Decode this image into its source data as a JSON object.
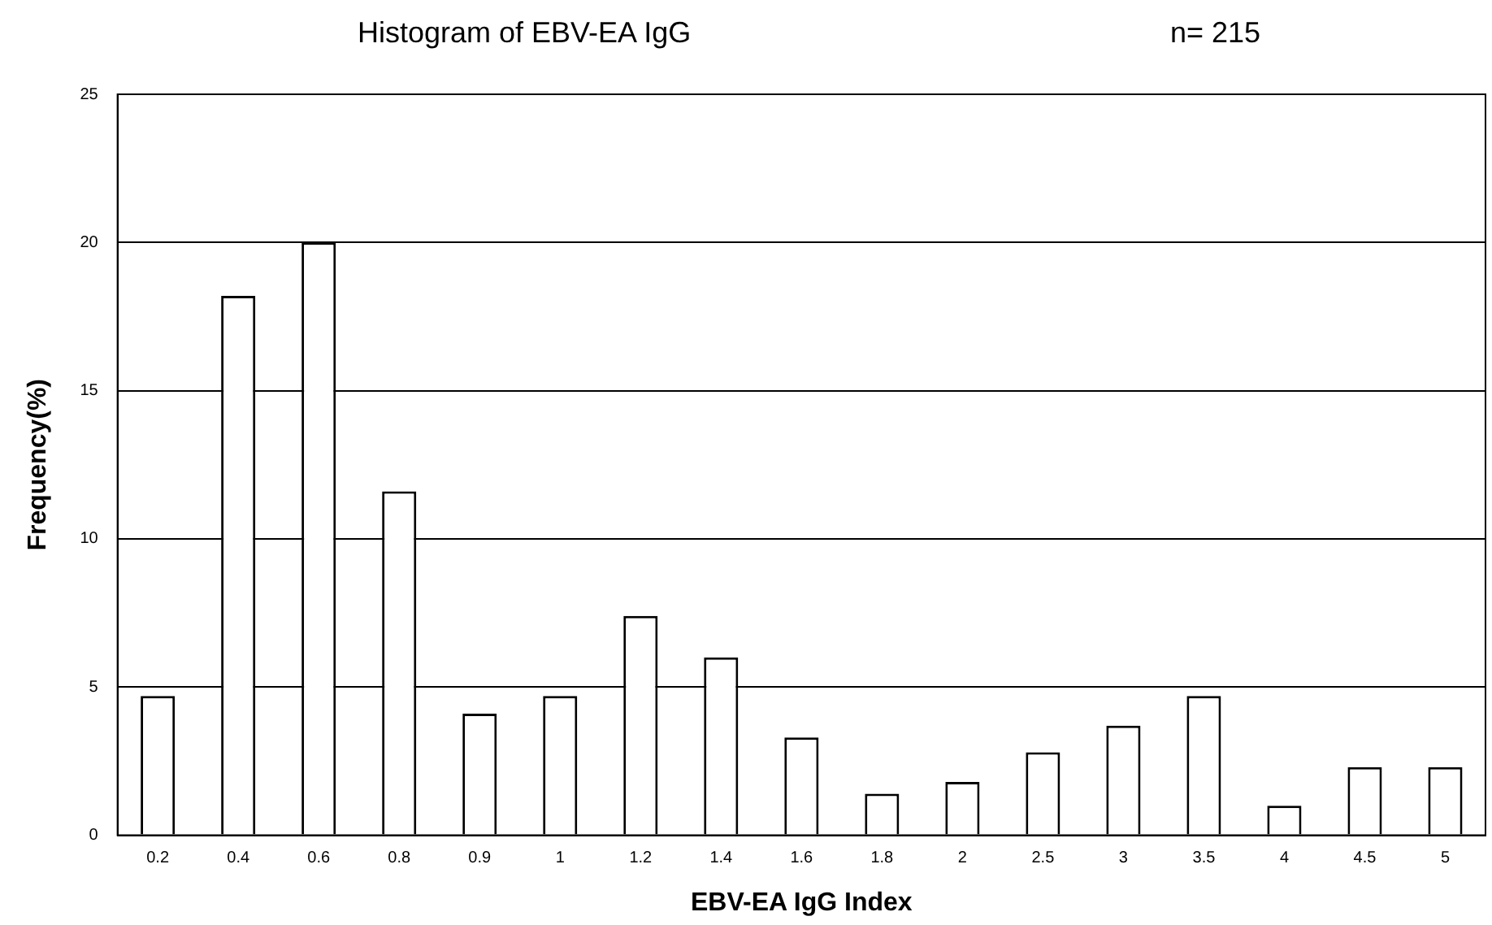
{
  "chart_data": {
    "type": "bar",
    "title": "Histogram of EBV-EA IgG",
    "annotations": [
      "n= 215"
    ],
    "xlabel": "EBV-EA IgG Index",
    "ylabel": "Frequency(%)",
    "categories": [
      "0.2",
      "0.4",
      "0.6",
      "0.8",
      "0.9",
      "1",
      "1.2",
      "1.4",
      "1.6",
      "1.8",
      "2",
      "2.5",
      "3",
      "3.5",
      "4",
      "4.5",
      "5"
    ],
    "values": [
      4.7,
      18.2,
      20,
      11.6,
      4.1,
      4.7,
      7.4,
      6.0,
      3.3,
      1.4,
      1.8,
      2.8,
      3.7,
      4.7,
      1.0,
      2.3,
      2.3
    ],
    "color": "#ffffff",
    "ylim": [
      0,
      25
    ],
    "yticks": [
      0,
      5,
      10,
      15,
      20,
      25
    ],
    "grid": "y",
    "legend": false
  }
}
